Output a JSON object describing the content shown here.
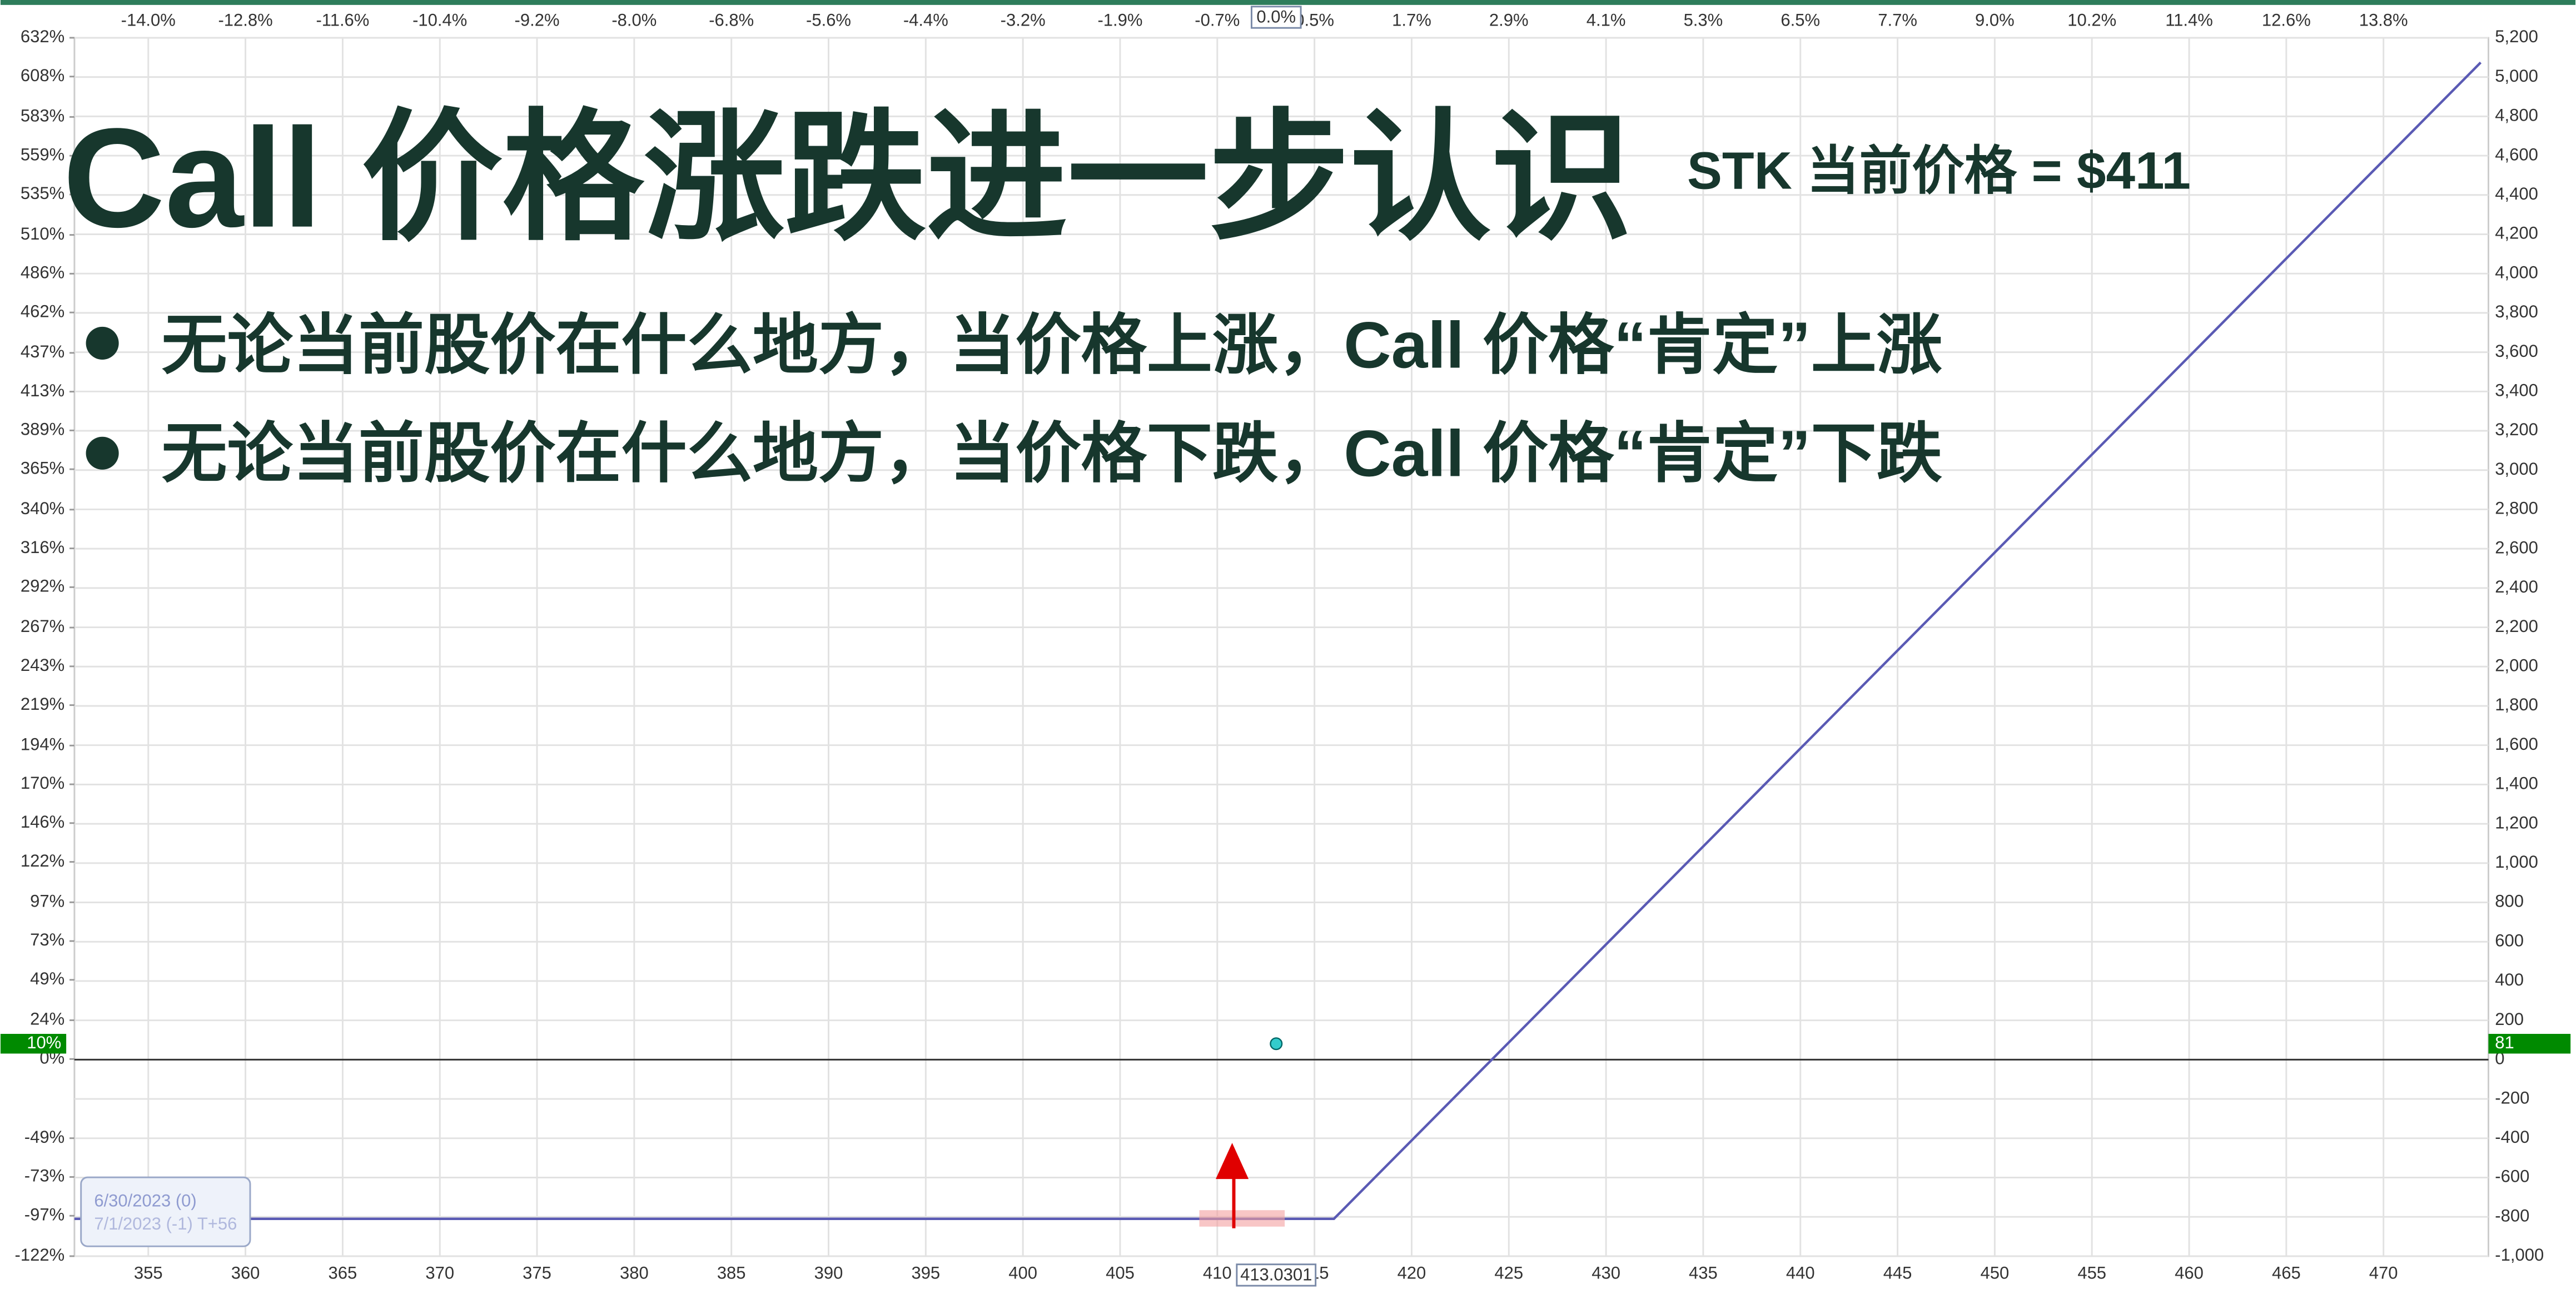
{
  "slide": {
    "title": "Call 价格涨跌进一步认识",
    "subtitle": "STK 当前价格 = $411",
    "bullets": [
      "无论当前股价在什么地方，当价格上涨，Call 价格“肯定”上涨",
      "无论当前股价在什么地方，当价格下跌，Call 价格“肯定”下跌"
    ]
  },
  "chart_data": {
    "type": "line",
    "xlim": [
      351.2,
      475.4
    ],
    "xticks": [
      355,
      360,
      365,
      370,
      375,
      380,
      385,
      390,
      395,
      400,
      405,
      410,
      415,
      420,
      425,
      430,
      435,
      440,
      445,
      450,
      455,
      460,
      465,
      470
    ],
    "x2ticks": [
      {
        "value": -14.0,
        "label": "-14.0%"
      },
      {
        "value": -12.8,
        "label": "-12.8%"
      },
      {
        "value": -11.6,
        "label": "-11.6%"
      },
      {
        "value": -10.4,
        "label": "-10.4%"
      },
      {
        "value": -9.2,
        "label": "-9.2%"
      },
      {
        "value": -8.0,
        "label": "-8.0%"
      },
      {
        "value": -6.8,
        "label": "-6.8%"
      },
      {
        "value": -5.6,
        "label": "-5.6%"
      },
      {
        "value": -4.4,
        "label": "-4.4%"
      },
      {
        "value": -3.2,
        "label": "-3.2%"
      },
      {
        "value": -1.9,
        "label": "-1.9%"
      },
      {
        "value": -0.7,
        "label": "-0.7%"
      },
      {
        "value": 0.5,
        "label": "0.5%"
      },
      {
        "value": 1.7,
        "label": "1.7%"
      },
      {
        "value": 2.9,
        "label": "2.9%"
      },
      {
        "value": 4.1,
        "label": "4.1%"
      },
      {
        "value": 5.3,
        "label": "5.3%"
      },
      {
        "value": 6.5,
        "label": "6.5%"
      },
      {
        "value": 7.7,
        "label": "7.7%"
      },
      {
        "value": 9.0,
        "label": "9.0%"
      },
      {
        "value": 10.2,
        "label": "10.2%"
      },
      {
        "value": 11.4,
        "label": "11.4%"
      },
      {
        "value": 12.6,
        "label": "12.6%"
      },
      {
        "value": 13.8,
        "label": "13.8%"
      }
    ],
    "ylim": [
      -122,
      632
    ],
    "yticks": [
      {
        "value": 632,
        "label": "632%"
      },
      {
        "value": 608,
        "label": "608%"
      },
      {
        "value": 583,
        "label": "583%"
      },
      {
        "value": 559,
        "label": "559%"
      },
      {
        "value": 535,
        "label": "535%"
      },
      {
        "value": 510,
        "label": "510%"
      },
      {
        "value": 486,
        "label": "486%"
      },
      {
        "value": 462,
        "label": "462%"
      },
      {
        "value": 437,
        "label": "437%"
      },
      {
        "value": 413,
        "label": "413%"
      },
      {
        "value": 389,
        "label": "389%"
      },
      {
        "value": 365,
        "label": "365%"
      },
      {
        "value": 340,
        "label": "340%"
      },
      {
        "value": 316,
        "label": "316%"
      },
      {
        "value": 292,
        "label": "292%"
      },
      {
        "value": 267,
        "label": "267%"
      },
      {
        "value": 243,
        "label": "243%"
      },
      {
        "value": 219,
        "label": "219%"
      },
      {
        "value": 194,
        "label": "194%"
      },
      {
        "value": 170,
        "label": "170%"
      },
      {
        "value": 146,
        "label": "146%"
      },
      {
        "value": 122,
        "label": "122%"
      },
      {
        "value": 97,
        "label": "97%"
      },
      {
        "value": 73,
        "label": "73%"
      },
      {
        "value": 49,
        "label": "49%"
      },
      {
        "value": 24,
        "label": "24%"
      },
      {
        "value": 0,
        "label": "0%"
      },
      {
        "value": -49,
        "label": "-49%"
      },
      {
        "value": -73,
        "label": "-73%"
      },
      {
        "value": -97,
        "label": "-97%"
      },
      {
        "value": -122,
        "label": "-122%"
      }
    ],
    "y2lim": [
      -1000,
      5200
    ],
    "y2ticks": [
      {
        "value": 5200,
        "label": "5,200"
      },
      {
        "value": 5000,
        "label": "5,000"
      },
      {
        "value": 4800,
        "label": "4,800"
      },
      {
        "value": 4600,
        "label": "4,600"
      },
      {
        "value": 4400,
        "label": "4,400"
      },
      {
        "value": 4200,
        "label": "4,200"
      },
      {
        "value": 4000,
        "label": "4,000"
      },
      {
        "value": 3800,
        "label": "3,800"
      },
      {
        "value": 3600,
        "label": "3,600"
      },
      {
        "value": 3400,
        "label": "3,400"
      },
      {
        "value": 3200,
        "label": "3,200"
      },
      {
        "value": 3000,
        "label": "3,000"
      },
      {
        "value": 2800,
        "label": "2,800"
      },
      {
        "value": 2600,
        "label": "2,600"
      },
      {
        "value": 2400,
        "label": "2,400"
      },
      {
        "value": 2200,
        "label": "2,200"
      },
      {
        "value": 2000,
        "label": "2,000"
      },
      {
        "value": 1800,
        "label": "1,800"
      },
      {
        "value": 1600,
        "label": "1,600"
      },
      {
        "value": 1400,
        "label": "1,400"
      },
      {
        "value": 1200,
        "label": "1,200"
      },
      {
        "value": 1000,
        "label": "1,000"
      },
      800,
      600,
      400,
      200,
      0,
      -200,
      -400,
      -600,
      -800,
      {
        "value": -1000,
        "label": "-1,000"
      }
    ],
    "grid": true,
    "series": [
      {
        "name": "6/30/2023 (0)",
        "color": "#5a5ab4",
        "axis": "y2",
        "x": [
          351.2,
          416,
          475.0
        ],
        "values": [
          -810,
          -810,
          5074
        ]
      }
    ],
    "annotations": [
      "7/1/2023 (-1) T+56"
    ],
    "current": {
      "x": 413.0301,
      "value": 81,
      "percent": {
        "value": 10,
        "label": "10%"
      },
      "change": {
        "value": 0,
        "label": "0.0%"
      },
      "color": "#33cccc"
    }
  }
}
